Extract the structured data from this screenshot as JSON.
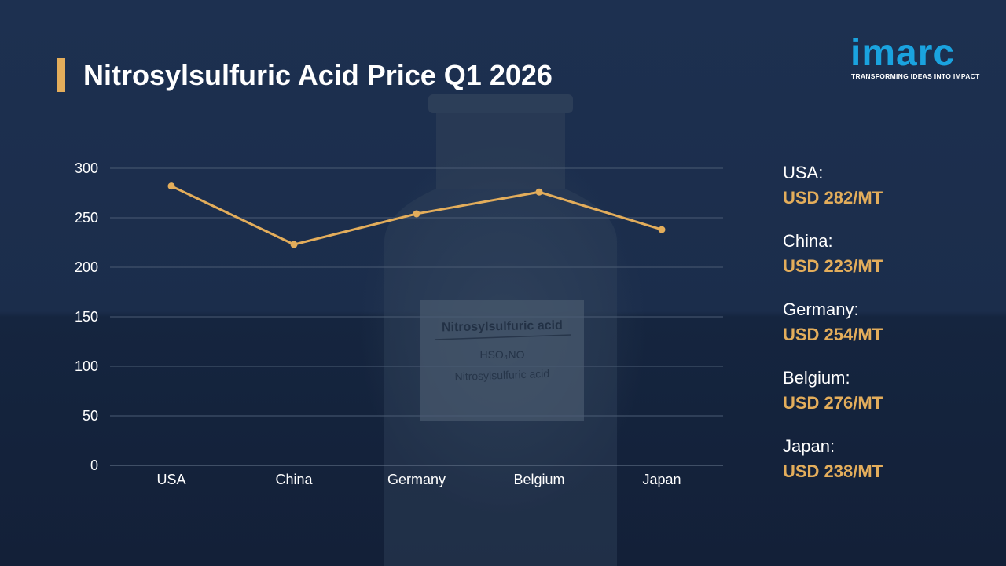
{
  "header": {
    "title": "Nitrosylsulfuric Acid Price Q1 2026"
  },
  "logo": {
    "wordmark": "imarc",
    "tagline": "TRANSFORMING IDEAS INTO IMPACT",
    "color": "#1aa3df"
  },
  "bottle_label": {
    "name": "Nitrosylsulfuric acid",
    "formula": "HSO₄NO",
    "subname": "Nitrosylsulfuric acid"
  },
  "colors": {
    "accent": "#e3ad5b",
    "background": "#1a2b45",
    "grid": "#4a5b73"
  },
  "chart_data": {
    "type": "line",
    "categories": [
      "USA",
      "China",
      "Germany",
      "Belgium",
      "Japan"
    ],
    "series": [
      {
        "values": [
          282,
          223,
          254,
          276,
          238
        ]
      }
    ],
    "yticks": [
      "0",
      "50",
      "100",
      "150",
      "200",
      "250",
      "300"
    ],
    "ylim": [
      0,
      300
    ],
    "grid": true,
    "title": "",
    "xlabel": "",
    "ylabel": ""
  },
  "legend": {
    "items": [
      {
        "country": "USA:",
        "price": "USD 282/MT"
      },
      {
        "country": "China:",
        "price": "USD 223/MT"
      },
      {
        "country": "Germany:",
        "price": "USD 254/MT"
      },
      {
        "country": "Belgium:",
        "price": "USD 276/MT"
      },
      {
        "country": "Japan:",
        "price": "USD 238/MT"
      }
    ]
  }
}
